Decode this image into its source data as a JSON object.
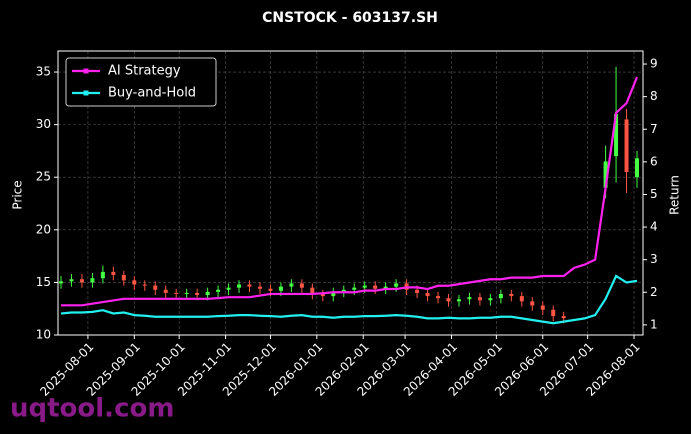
{
  "chart_data": {
    "type": "candlestick",
    "title": "CNSTOCK - 603137.SH",
    "ylabel": "Price",
    "y2label": "Return",
    "watermark": "uqtool.com",
    "xlim": [
      "2025-07-12",
      "2026-08-07"
    ],
    "xticks": [
      "2025-08-01",
      "2025-09-01",
      "2025-10-01",
      "2025-11-01",
      "2025-12-01",
      "2026-01-01",
      "2026-02-01",
      "2026-03-01",
      "2026-04-01",
      "2026-05-01",
      "2026-06-01",
      "2026-07-01",
      "2026-08-01"
    ],
    "ylim": [
      10,
      37
    ],
    "yticks": [
      10,
      15,
      20,
      25,
      30,
      35
    ],
    "y2lim": [
      0.69,
      9.4
    ],
    "y2ticks": [
      1,
      2,
      3,
      4,
      5,
      6,
      7,
      8,
      9
    ],
    "grid": true,
    "legend": "upper left",
    "up_color": "#44ff44",
    "down_color": "#ff5544",
    "x": [
      "2025-07-14",
      "2025-07-21",
      "2025-07-28",
      "2025-08-04",
      "2025-08-11",
      "2025-08-18",
      "2025-08-25",
      "2025-09-01",
      "2025-09-08",
      "2025-09-15",
      "2025-09-22",
      "2025-09-29",
      "2025-10-06",
      "2025-10-13",
      "2025-10-20",
      "2025-10-27",
      "2025-11-03",
      "2025-11-10",
      "2025-11-17",
      "2025-11-24",
      "2025-12-01",
      "2025-12-08",
      "2025-12-15",
      "2025-12-22",
      "2025-12-29",
      "2026-01-05",
      "2026-01-12",
      "2026-01-19",
      "2026-01-26",
      "2026-02-02",
      "2026-02-09",
      "2026-02-16",
      "2026-02-23",
      "2026-03-02",
      "2026-03-09",
      "2026-03-16",
      "2026-03-23",
      "2026-03-30",
      "2026-04-06",
      "2026-04-13",
      "2026-04-20",
      "2026-04-27",
      "2026-05-04",
      "2026-05-11",
      "2026-05-18",
      "2026-05-25",
      "2026-06-01",
      "2026-06-08",
      "2026-06-15",
      "2026-06-22",
      "2026-06-29",
      "2026-07-06",
      "2026-07-13",
      "2026-07-20",
      "2026-07-27",
      "2026-08-03"
    ],
    "open": [
      14.9,
      15.1,
      15.3,
      15.0,
      15.4,
      16.0,
      15.7,
      15.2,
      14.8,
      14.7,
      14.3,
      14.0,
      13.9,
      14.0,
      13.8,
      14.1,
      14.3,
      14.5,
      14.8,
      14.6,
      14.4,
      14.2,
      14.6,
      14.9,
      14.5,
      13.9,
      13.7,
      14.1,
      14.3,
      14.5,
      14.7,
      14.4,
      14.6,
      14.9,
      14.3,
      14.0,
      13.7,
      13.5,
      13.2,
      13.4,
      13.6,
      13.3,
      13.5,
      13.9,
      13.7,
      13.2,
      12.8,
      12.4,
      11.8,
      null,
      null,
      null,
      24.0,
      27.0,
      30.5,
      25.0
    ],
    "high": [
      15.6,
      15.8,
      15.8,
      15.9,
      16.6,
      16.5,
      16.1,
      15.6,
      15.2,
      15.1,
      14.7,
      14.4,
      14.4,
      14.4,
      14.5,
      14.7,
      14.9,
      15.2,
      15.2,
      15.0,
      14.8,
      15.0,
      15.3,
      15.3,
      14.9,
      14.3,
      14.5,
      14.7,
      14.9,
      15.1,
      15.1,
      15.0,
      15.3,
      15.3,
      14.7,
      14.4,
      14.1,
      13.9,
      13.8,
      14.0,
      14.0,
      13.9,
      14.3,
      14.3,
      14.1,
      13.6,
      13.2,
      12.8,
      12.2,
      null,
      null,
      null,
      28.0,
      35.5,
      31.5,
      27.5
    ],
    "low": [
      14.4,
      14.6,
      14.5,
      14.5,
      14.9,
      15.2,
      14.7,
      14.3,
      14.2,
      13.8,
      13.5,
      13.4,
      13.4,
      13.3,
      13.3,
      13.6,
      13.8,
      14.0,
      14.1,
      13.9,
      13.7,
      13.7,
      14.1,
      14.0,
      13.4,
      13.2,
      13.2,
      13.6,
      13.8,
      14.0,
      13.9,
      13.9,
      14.1,
      13.8,
      13.5,
      13.2,
      13.0,
      12.7,
      12.7,
      12.9,
      12.8,
      12.8,
      13.0,
      13.2,
      12.7,
      12.3,
      11.9,
      11.3,
      11.1,
      null,
      null,
      null,
      23.0,
      24.5,
      23.5,
      24.0
    ],
    "close": [
      15.1,
      15.3,
      15.0,
      15.4,
      16.0,
      15.7,
      15.2,
      14.8,
      14.7,
      14.3,
      14.0,
      13.9,
      14.0,
      13.8,
      14.1,
      14.3,
      14.5,
      14.8,
      14.6,
      14.4,
      14.2,
      14.6,
      14.9,
      14.5,
      13.9,
      13.7,
      14.1,
      14.3,
      14.5,
      14.7,
      14.4,
      14.6,
      14.9,
      14.3,
      14.0,
      13.7,
      13.5,
      13.2,
      13.4,
      13.6,
      13.3,
      13.5,
      13.9,
      13.7,
      13.2,
      12.8,
      12.4,
      11.8,
      11.6,
      null,
      null,
      null,
      26.5,
      31.0,
      25.5,
      26.8
    ],
    "series": [
      {
        "name": "AI Strategy",
        "color": "#ff22ee",
        "axis": "y2",
        "values": [
          1.6,
          1.6,
          1.6,
          1.65,
          1.7,
          1.75,
          1.8,
          1.8,
          1.8,
          1.8,
          1.8,
          1.8,
          1.8,
          1.8,
          1.8,
          1.82,
          1.85,
          1.85,
          1.85,
          1.9,
          1.95,
          1.95,
          1.95,
          1.95,
          1.95,
          1.97,
          2.0,
          2.0,
          2.0,
          2.05,
          2.05,
          2.1,
          2.1,
          2.15,
          2.15,
          2.1,
          2.2,
          2.2,
          2.25,
          2.3,
          2.35,
          2.4,
          2.4,
          2.45,
          2.45,
          2.45,
          2.5,
          2.5,
          2.5,
          2.75,
          2.85,
          3.0,
          5.2,
          7.5,
          7.8,
          8.6
        ]
      },
      {
        "name": "Buy-and-Hold",
        "color": "#22f0f0",
        "axis": "y2",
        "values": [
          1.35,
          1.38,
          1.38,
          1.4,
          1.45,
          1.35,
          1.38,
          1.3,
          1.28,
          1.25,
          1.25,
          1.25,
          1.25,
          1.25,
          1.25,
          1.27,
          1.28,
          1.3,
          1.3,
          1.28,
          1.27,
          1.25,
          1.28,
          1.3,
          1.25,
          1.25,
          1.22,
          1.25,
          1.25,
          1.27,
          1.27,
          1.28,
          1.3,
          1.28,
          1.25,
          1.2,
          1.2,
          1.22,
          1.2,
          1.2,
          1.22,
          1.22,
          1.25,
          1.25,
          1.2,
          1.15,
          1.1,
          1.05,
          1.1,
          1.15,
          1.2,
          1.3,
          1.8,
          2.5,
          2.3,
          2.35
        ]
      }
    ]
  }
}
